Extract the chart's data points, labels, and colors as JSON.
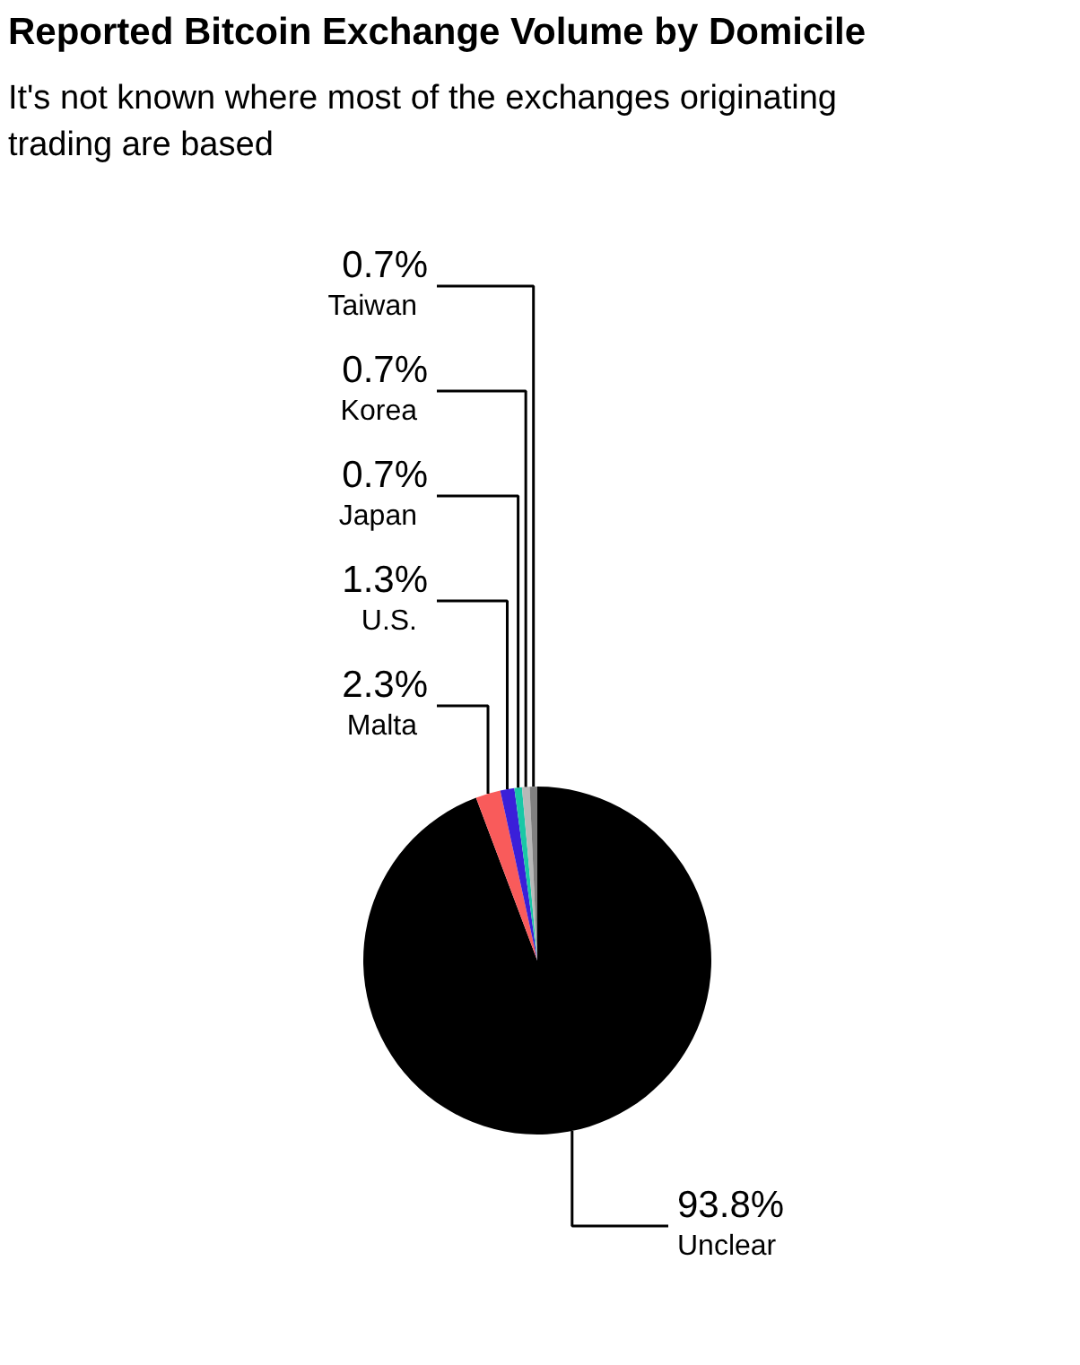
{
  "chart_data": {
    "type": "pie",
    "title": "Reported Bitcoin Exchange Volume by Domicile",
    "subtitle": "It's not known where most of the exchanges originating trading are based",
    "categories": [
      "Unclear",
      "Malta",
      "U.S.",
      "Japan",
      "Korea",
      "Taiwan"
    ],
    "values": [
      93.8,
      2.3,
      1.3,
      0.7,
      0.7,
      0.7
    ],
    "colors": [
      "#000000",
      "#f95b5b",
      "#3a1fd9",
      "#19c7a6",
      "#b8b8b8",
      "#808080"
    ],
    "value_labels": [
      "93.8%",
      "2.3%",
      "1.3%",
      "0.7%",
      "0.7%",
      "0.7%"
    ]
  }
}
